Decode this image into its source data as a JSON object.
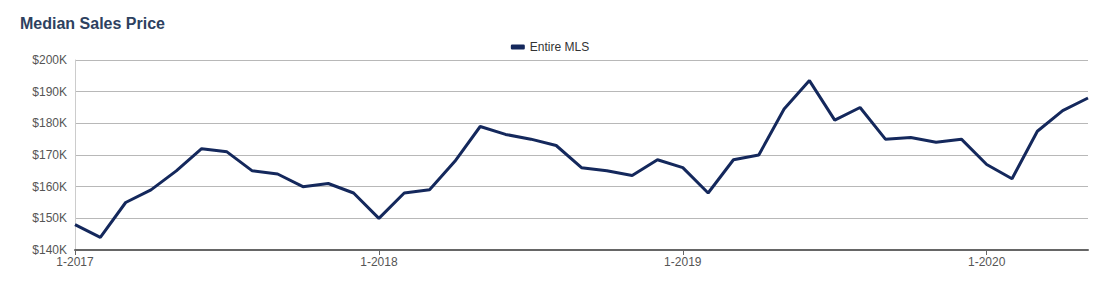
{
  "chart_data": {
    "type": "line",
    "title": "Median Sales Price",
    "categories": [
      "1-2017",
      null,
      null,
      null,
      null,
      null,
      null,
      null,
      null,
      null,
      null,
      null,
      "1-2018",
      null,
      null,
      null,
      null,
      null,
      null,
      null,
      null,
      null,
      null,
      null,
      "1-2019",
      null,
      null,
      null,
      null,
      null,
      null,
      null,
      null,
      null,
      null,
      null,
      "1-2020",
      null,
      null,
      null,
      null
    ],
    "series": [
      {
        "name": "Entire MLS",
        "color": "#14285c",
        "values": [
          148000,
          144000,
          155000,
          159000,
          165000,
          172000,
          171000,
          165000,
          164000,
          160000,
          161000,
          158000,
          150000,
          158000,
          159000,
          168000,
          179000,
          176500,
          175000,
          173000,
          166000,
          165000,
          163500,
          168500,
          166000,
          158000,
          168500,
          170000,
          184500,
          193500,
          181000,
          185000,
          175000,
          175500,
          174000,
          175000,
          167000,
          162500,
          177500,
          184000,
          188000
        ]
      }
    ],
    "ylim": [
      140000,
      200000
    ],
    "yticks": [
      {
        "value": 140000,
        "label": "$140K"
      },
      {
        "value": 150000,
        "label": "$150K"
      },
      {
        "value": 160000,
        "label": "$160K"
      },
      {
        "value": 170000,
        "label": "$170K"
      },
      {
        "value": 180000,
        "label": "$180K"
      },
      {
        "value": 190000,
        "label": "$190K"
      },
      {
        "value": 200000,
        "label": "$200K"
      }
    ],
    "grid": true,
    "legend": "top"
  }
}
